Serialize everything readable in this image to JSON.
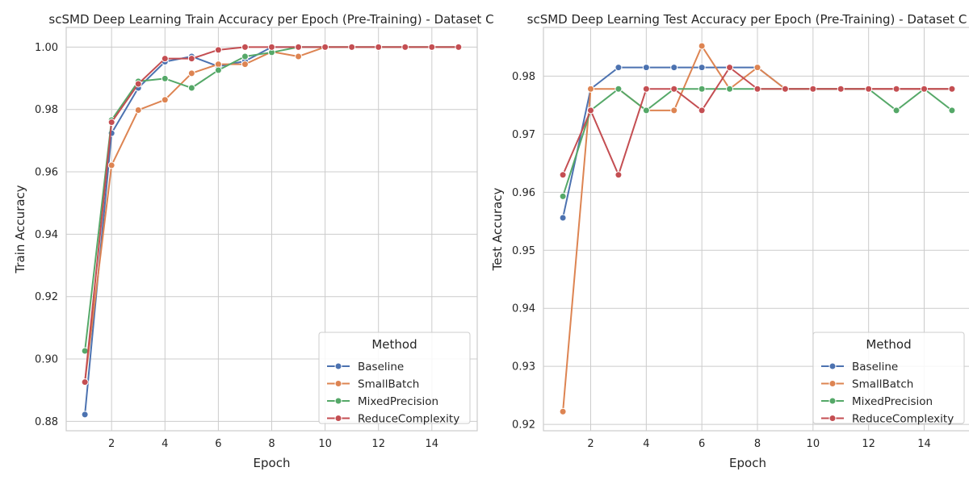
{
  "colors": {
    "Baseline": "#4c72b0",
    "SmallBatch": "#dd8452",
    "MixedPrecision": "#55a868",
    "ReduceComplexity": "#c44e52",
    "grid": "#cccccc",
    "axes_edge": "#cccccc"
  },
  "chart_data": [
    {
      "type": "line",
      "title": "scSMD Deep Learning Train Accuracy per Epoch (Pre-Training) - Dataset C",
      "xlabel": "Epoch",
      "ylabel": "Train Accuracy",
      "xlim": [
        0.3,
        15.7
      ],
      "ylim": [
        0.877,
        1.0063
      ],
      "xticks": [
        2,
        4,
        6,
        8,
        10,
        12,
        14
      ],
      "yticks": [
        0.88,
        0.9,
        0.92,
        0.94,
        0.96,
        0.98,
        1.0
      ],
      "ytick_labels": [
        "0.88",
        "0.90",
        "0.92",
        "0.94",
        "0.96",
        "0.98",
        "1.00"
      ],
      "grid": true,
      "legend": {
        "title": "Method",
        "placement": "lower-right"
      },
      "x": [
        1,
        2,
        3,
        4,
        5,
        6,
        7,
        8,
        9,
        10,
        11,
        12,
        13,
        14,
        15
      ],
      "series": [
        {
          "name": "Baseline",
          "values": [
            0.8822,
            0.9724,
            0.9869,
            0.9953,
            0.997,
            0.9938,
            0.9955,
            1.0,
            1.0,
            1.0,
            1.0,
            1.0,
            1.0,
            1.0,
            1.0
          ]
        },
        {
          "name": "SmallBatch",
          "values": [
            0.8926,
            0.9621,
            0.9798,
            0.9831,
            0.9916,
            0.9945,
            0.9945,
            0.9985,
            0.997,
            1.0,
            1.0,
            1.0,
            1.0,
            1.0,
            1.0
          ]
        },
        {
          "name": "MixedPrecision",
          "values": [
            0.9026,
            0.9766,
            0.989,
            0.9899,
            0.9869,
            0.9926,
            0.997,
            0.9983,
            1.0,
            1.0,
            1.0,
            1.0,
            1.0,
            1.0,
            1.0
          ]
        },
        {
          "name": "ReduceComplexity",
          "values": [
            0.8926,
            0.9759,
            0.9882,
            0.9963,
            0.9963,
            0.9991,
            1.0,
            1.0,
            1.0,
            1.0,
            1.0,
            1.0,
            1.0,
            1.0,
            1.0
          ]
        }
      ]
    },
    {
      "type": "line",
      "title": "scSMD Deep Learning Test Accuracy per Epoch (Pre-Training) - Dataset C",
      "xlabel": "Epoch",
      "ylabel": "Test Accuracy",
      "xlim": [
        0.3,
        15.7
      ],
      "ylim": [
        0.9189,
        0.9884
      ],
      "xticks": [
        2,
        4,
        6,
        8,
        10,
        12,
        14
      ],
      "yticks": [
        0.92,
        0.93,
        0.94,
        0.95,
        0.96,
        0.97,
        0.98
      ],
      "ytick_labels": [
        "0.92",
        "0.93",
        "0.94",
        "0.95",
        "0.96",
        "0.97",
        "0.98"
      ],
      "grid": true,
      "legend": {
        "title": "Method",
        "placement": "lower-right"
      },
      "x": [
        1,
        2,
        3,
        4,
        5,
        6,
        7,
        8,
        9,
        10,
        11,
        12,
        13,
        14,
        15
      ],
      "series": [
        {
          "name": "Baseline",
          "values": [
            0.9556,
            0.9778,
            0.9815,
            0.9815,
            0.9815,
            0.9815,
            0.9815,
            0.9815,
            0.9778,
            0.9778,
            0.9778,
            0.9778,
            0.9778,
            0.9778,
            0.9778
          ]
        },
        {
          "name": "SmallBatch",
          "values": [
            0.9222,
            0.9778,
            0.9778,
            0.9741,
            0.9741,
            0.9852,
            0.9778,
            0.9815,
            0.9778,
            0.9778,
            0.9778,
            0.9778,
            0.9778,
            0.9778,
            0.9778
          ]
        },
        {
          "name": "MixedPrecision",
          "values": [
            0.9593,
            0.9741,
            0.9778,
            0.9741,
            0.9778,
            0.9778,
            0.9778,
            0.9778,
            0.9778,
            0.9778,
            0.9778,
            0.9778,
            0.9741,
            0.9778,
            0.9741
          ]
        },
        {
          "name": "ReduceComplexity",
          "values": [
            0.963,
            0.9741,
            0.963,
            0.9778,
            0.9778,
            0.9741,
            0.9815,
            0.9778,
            0.9778,
            0.9778,
            0.9778,
            0.9778,
            0.9778,
            0.9778,
            0.9778
          ]
        }
      ]
    }
  ]
}
